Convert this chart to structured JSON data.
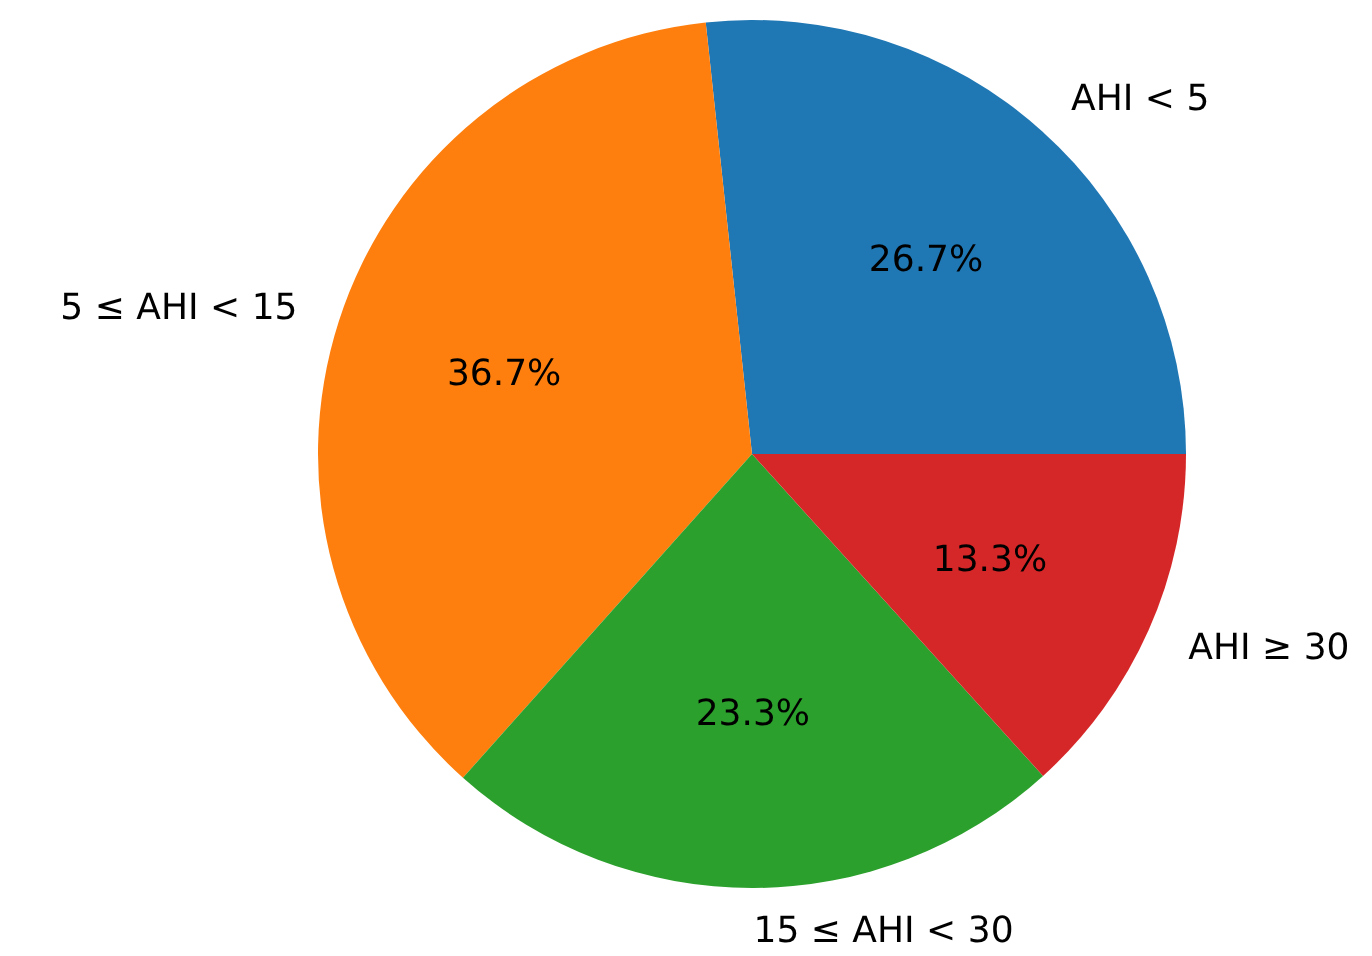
{
  "chart_data": {
    "type": "pie",
    "categories": [
      "AHI < 5",
      "5 ≤ AHI < 15",
      "15 ≤ AHI < 30",
      "AHI ≥ 30"
    ],
    "values": [
      26.7,
      36.7,
      23.3,
      13.3
    ],
    "colors": [
      "#1f77b4",
      "#ff7f0e",
      "#2ca02c",
      "#d62728"
    ],
    "value_labels": [
      "26.7%",
      "36.7%",
      "23.3%",
      "13.3%"
    ],
    "legend": false
  }
}
